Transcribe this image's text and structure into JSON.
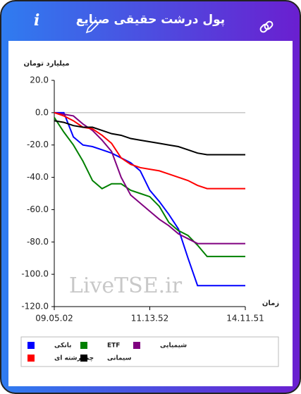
{
  "header": {
    "title": "پول درشت حقیقی صنایع",
    "info": "i"
  },
  "watermark": "LiveTSE.ir",
  "chart_data": {
    "type": "line",
    "y_label": "میلیارد تومان",
    "x_label": "زمان",
    "x": [
      0,
      5,
      10,
      15,
      20,
      25,
      30,
      35,
      40,
      45,
      50,
      55,
      60,
      65,
      70,
      75,
      80,
      100
    ],
    "xlim": [
      0,
      100
    ],
    "xticks": [
      {
        "value": 0,
        "label": "09.05.02"
      },
      {
        "value": 50,
        "label": "11.13.52"
      },
      {
        "value": 100,
        "label": "14.11.51"
      }
    ],
    "ylim": [
      -120,
      20
    ],
    "yticks": [
      {
        "value": 20,
        "label": "20.0"
      },
      {
        "value": 0,
        "label": "0.0"
      },
      {
        "value": -20,
        "label": "-20.0"
      },
      {
        "value": -40,
        "label": "-40.0"
      },
      {
        "value": -60,
        "label": "-60.0"
      },
      {
        "value": -80,
        "label": "-80.0"
      },
      {
        "value": -100,
        "label": "-100.0"
      },
      {
        "value": -120,
        "label": "-120.0"
      }
    ],
    "zero_line": true,
    "legend": "bottom",
    "series": [
      {
        "name": "بانکی",
        "color": "#0000ff",
        "values": [
          0,
          0,
          -15,
          -20,
          -21,
          -23,
          -25,
          -28,
          -31,
          -36,
          -48,
          -55,
          -63,
          -72,
          -90,
          -107,
          -107,
          -107
        ]
      },
      {
        "name": "ETF",
        "color": "#008000",
        "values": [
          -3,
          -12,
          -20,
          -30,
          -42,
          -47,
          -44,
          -44,
          -48,
          -50,
          -52,
          -58,
          -68,
          -73,
          -76,
          -82,
          -89,
          -89
        ]
      },
      {
        "name": "شیمیایی",
        "color": "#800080",
        "values": [
          0,
          -1,
          -2,
          -7,
          -11,
          -17,
          -24,
          -40,
          -51,
          -56,
          -61,
          -66,
          -70,
          -75,
          -78,
          -81,
          -81,
          -81
        ]
      },
      {
        "name": "چند رشته ای",
        "color": "#ff0000",
        "values": [
          0,
          -2,
          -5,
          -9,
          -10,
          -14,
          -19,
          -28,
          -32,
          -34,
          -35,
          -36,
          -38,
          -40,
          -42,
          -45,
          -47,
          -47
        ]
      },
      {
        "name": "سیمانی",
        "color": "#000000",
        "values": [
          -5,
          -6,
          -8,
          -9,
          -9,
          -11,
          -13,
          -14,
          -16,
          -17,
          -18,
          -19,
          -20,
          -21,
          -23,
          -25,
          -26,
          -26
        ]
      }
    ]
  }
}
